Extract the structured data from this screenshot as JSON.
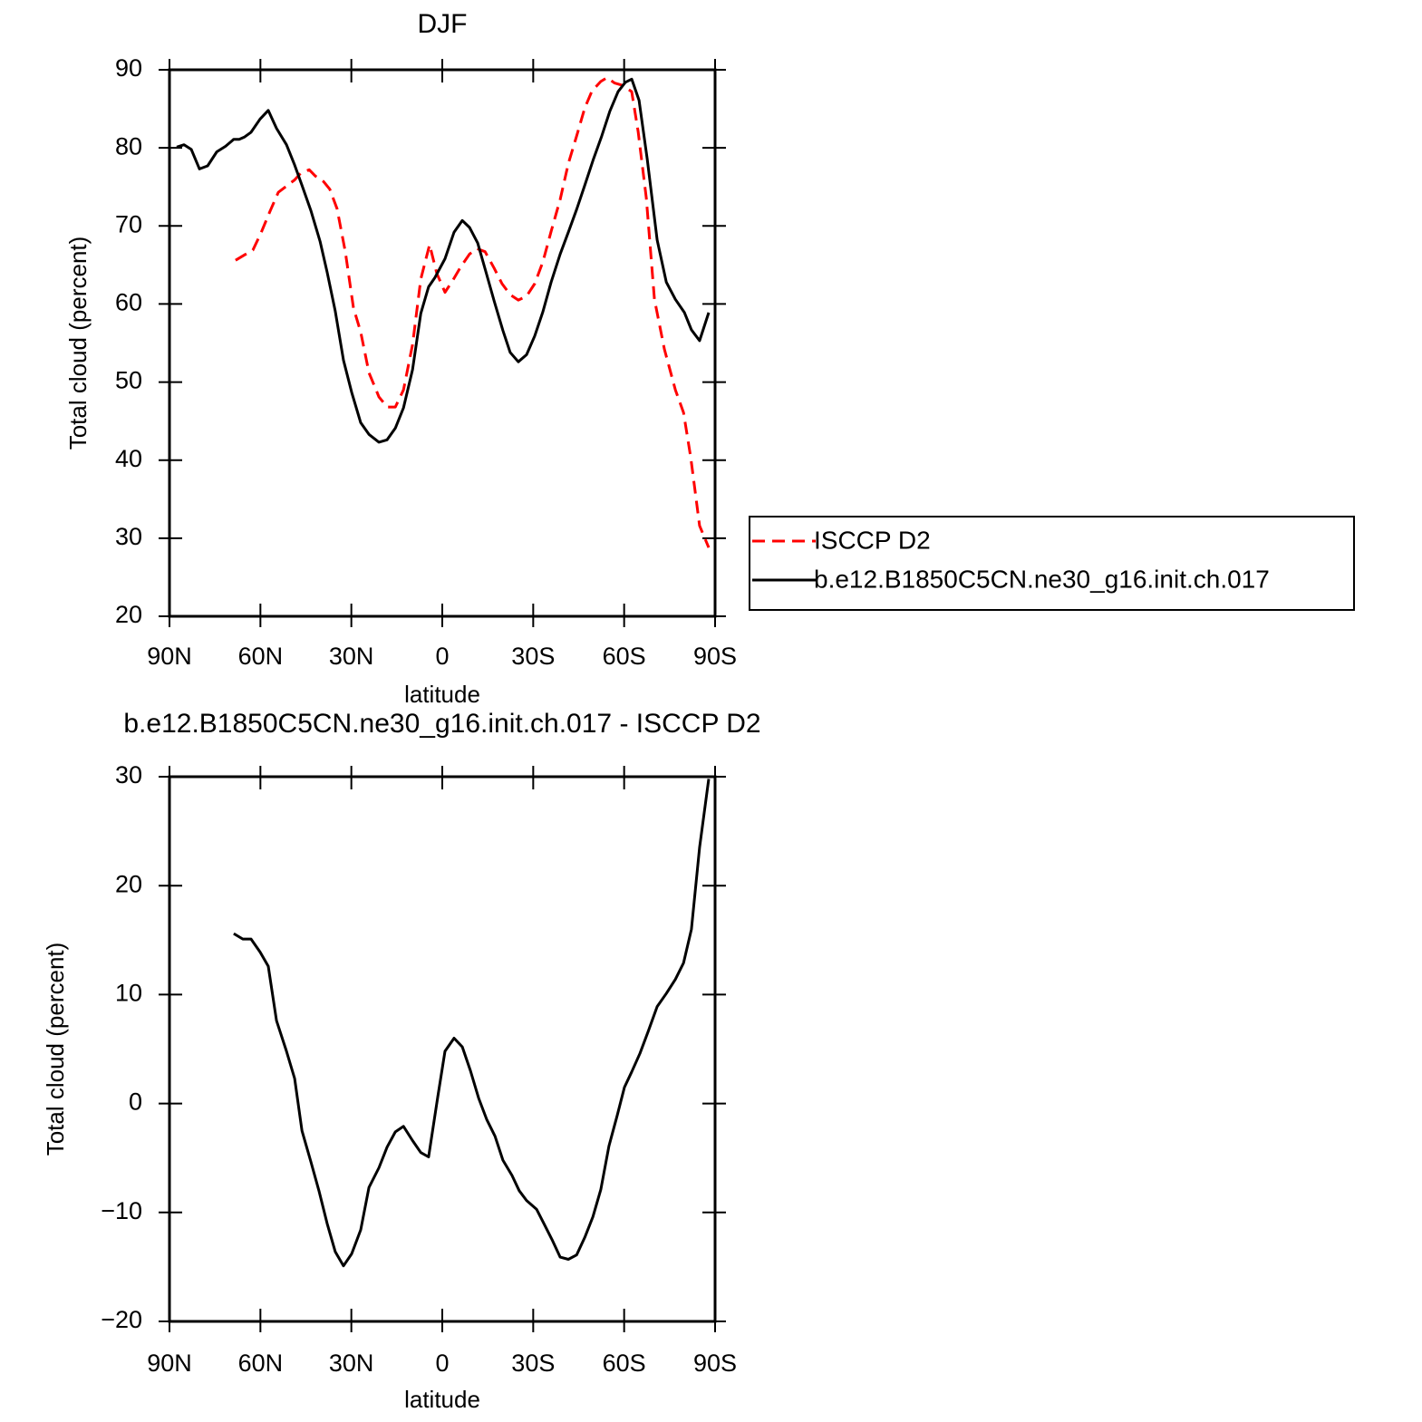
{
  "chart_data": [
    {
      "type": "line",
      "title": "DJF",
      "xlabel": "latitude",
      "ylabel": "Total cloud (percent)",
      "xlim": [
        90,
        -90
      ],
      "xticks": [
        {
          "value": 90,
          "label": "90N"
        },
        {
          "value": 60,
          "label": "60N"
        },
        {
          "value": 30,
          "label": "30N"
        },
        0,
        {
          "value": -30,
          "label": "30S"
        },
        {
          "value": -60,
          "label": "60S"
        },
        {
          "value": -90,
          "label": "90S"
        }
      ],
      "ylim": [
        20,
        90
      ],
      "yticks": [
        20,
        30,
        40,
        50,
        60,
        70,
        80,
        90
      ],
      "legend": "right",
      "series": [
        {
          "name": "ISCCP D2",
          "color": "#ff0000",
          "dash": "dashed",
          "x": [
            68.2,
            65.2,
            62.5,
            59.8,
            56.8,
            54.1,
            51.4,
            48.7,
            46.6,
            43.9,
            41.9,
            39.2,
            37.1,
            34.7,
            32.0,
            29.3,
            26.9,
            24.2,
            20.9,
            18.2,
            15.5,
            12.8,
            9.8,
            7.1,
            4.2,
            1.8,
            -0.9,
            -3.6,
            -6.0,
            -9.0,
            -11.4,
            -14.1,
            -17.1,
            -19.7,
            -22.4,
            -25.1,
            -27.8,
            -30.5,
            -33.2,
            -35.9,
            -38.9,
            -41.6,
            -44.3,
            -47.0,
            -49.4,
            -52.3,
            -54.4,
            -56.8,
            -59.5,
            -62.5,
            -64.6,
            -67.3,
            -70.0,
            -73.3,
            -76.9,
            -79.6,
            -82.0,
            -84.9,
            -87.9
          ],
          "values": [
            65.6,
            66.3,
            66.9,
            69.1,
            71.9,
            74.3,
            75.1,
            75.9,
            76.8,
            77.2,
            76.4,
            75.7,
            74.7,
            72.2,
            66.7,
            59.5,
            56.4,
            51.2,
            48.1,
            46.8,
            46.8,
            49.0,
            54.8,
            63.2,
            67.6,
            63.9,
            61.5,
            63.1,
            64.7,
            66.4,
            67.1,
            66.7,
            64.6,
            62.6,
            61.2,
            60.5,
            61.0,
            62.6,
            65.4,
            69.3,
            73.4,
            78.0,
            81.5,
            85.1,
            87.3,
            88.5,
            89.0,
            88.3,
            88.0,
            87.2,
            82.1,
            73.6,
            60.6,
            54.2,
            49.0,
            46.1,
            40.3,
            31.6,
            28.8
          ]
        },
        {
          "name": "b.e12.B1850C5CN.ne30_g16.init.ch.017",
          "color": "#000000",
          "dash": "solid",
          "x": [
            87.6,
            85.2,
            82.8,
            80.1,
            77.4,
            74.4,
            71.5,
            68.8,
            67.0,
            65.2,
            63.1,
            60.1,
            57.4,
            54.7,
            51.4,
            48.7,
            46.3,
            43.3,
            40.3,
            38.0,
            35.3,
            32.6,
            29.9,
            26.9,
            24.2,
            20.9,
            18.2,
            15.5,
            12.8,
            9.8,
            7.1,
            4.5,
            2.4,
            -0.9,
            -3.9,
            -6.6,
            -9.0,
            -11.7,
            -14.4,
            -17.1,
            -20.0,
            -22.4,
            -25.1,
            -27.8,
            -30.5,
            -33.2,
            -35.9,
            -38.9,
            -41.6,
            -44.3,
            -47.0,
            -49.9,
            -52.6,
            -55.3,
            -58.0,
            -60.4,
            -62.5,
            -64.9,
            -67.6,
            -70.9,
            -73.9,
            -76.9,
            -79.9,
            -82.2,
            -84.9,
            -87.9
          ],
          "values": [
            80.1,
            80.4,
            79.8,
            77.3,
            77.7,
            79.5,
            80.2,
            81.1,
            81.1,
            81.4,
            82.0,
            83.7,
            84.8,
            82.5,
            80.4,
            77.8,
            75.2,
            71.9,
            68.0,
            64.1,
            59.1,
            52.8,
            48.7,
            44.8,
            43.3,
            42.3,
            42.6,
            44.1,
            46.7,
            51.6,
            58.8,
            62.2,
            63.4,
            65.8,
            69.2,
            70.7,
            69.8,
            67.8,
            64.1,
            60.4,
            56.6,
            53.8,
            52.6,
            53.5,
            55.9,
            59.0,
            62.8,
            66.4,
            69.2,
            72.1,
            75.2,
            78.6,
            81.5,
            84.7,
            87.2,
            88.4,
            88.8,
            86.1,
            78.6,
            68.2,
            62.8,
            60.6,
            58.9,
            56.7,
            55.3,
            58.9
          ]
        }
      ]
    },
    {
      "type": "line",
      "title": "b.e12.B1850C5CN.ne30_g16.init.ch.017 - ISCCP D2",
      "xlabel": "latitude",
      "ylabel": "Total cloud (percent)",
      "xlim": [
        90,
        -90
      ],
      "xticks": [
        {
          "value": 90,
          "label": "90N"
        },
        {
          "value": 60,
          "label": "60N"
        },
        {
          "value": 30,
          "label": "30N"
        },
        0,
        {
          "value": -30,
          "label": "30S"
        },
        {
          "value": -60,
          "label": "60S"
        },
        {
          "value": -90,
          "label": "90S"
        }
      ],
      "ylim": [
        -20,
        30
      ],
      "yticks": [
        {
          "value": -20,
          "label": "−20"
        },
        {
          "value": -10,
          "label": "−10"
        },
        0,
        10,
        20,
        30
      ],
      "series": [
        {
          "color": "#000000",
          "dash": "solid",
          "x": [
            68.8,
            65.8,
            63.1,
            60.1,
            57.4,
            54.7,
            51.4,
            48.7,
            46.3,
            43.3,
            40.7,
            38.0,
            35.3,
            32.6,
            29.9,
            26.9,
            24.2,
            20.9,
            18.2,
            15.5,
            12.8,
            9.8,
            7.1,
            4.5,
            1.5,
            -0.9,
            -3.9,
            -6.6,
            -9.3,
            -12.0,
            -14.7,
            -17.4,
            -20.0,
            -23.0,
            -25.4,
            -27.8,
            -31.1,
            -33.5,
            -36.2,
            -38.9,
            -41.6,
            -44.3,
            -47.0,
            -49.7,
            -52.3,
            -55.0,
            -57.7,
            -60.1,
            -62.5,
            -65.2,
            -67.9,
            -70.9,
            -73.9,
            -76.9,
            -79.6,
            -82.2,
            -84.9,
            -87.9
          ],
          "values": [
            15.6,
            15.1,
            15.1,
            13.9,
            12.6,
            7.6,
            4.8,
            2.3,
            -2.5,
            -5.4,
            -8.0,
            -11.0,
            -13.6,
            -14.9,
            -13.8,
            -11.6,
            -7.7,
            -5.9,
            -4.0,
            -2.6,
            -2.1,
            -3.4,
            -4.5,
            -4.9,
            0.6,
            4.8,
            6.0,
            5.2,
            3.0,
            0.5,
            -1.5,
            -3.0,
            -5.2,
            -6.6,
            -8.0,
            -8.9,
            -9.7,
            -11.0,
            -12.5,
            -14.1,
            -14.3,
            -13.9,
            -12.3,
            -10.4,
            -7.9,
            -3.9,
            -1.1,
            1.5,
            2.9,
            4.6,
            6.6,
            8.9,
            10.1,
            11.4,
            12.9,
            16.0,
            23.5,
            29.8
          ]
        }
      ]
    }
  ]
}
